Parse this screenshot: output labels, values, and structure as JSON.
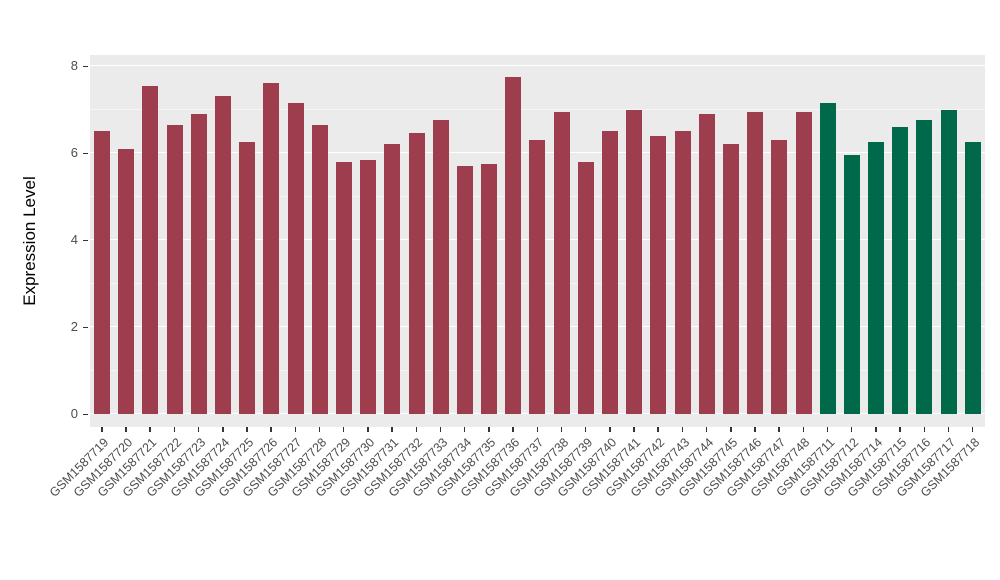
{
  "figure": {
    "background": "#FFFFFF",
    "panel_background": "#EBEBEB",
    "gridline_color": "#FFFFFF",
    "axis_text_color": "#4D4D4D",
    "axis_title_color": "#000000"
  },
  "chart_data": {
    "type": "bar",
    "title": "",
    "xlabel": "",
    "ylabel": "Expression Level",
    "ylim": [
      0,
      8
    ],
    "yticks": [
      0,
      2,
      4,
      6,
      8
    ],
    "ytick_labels": [
      "0",
      "2",
      "4",
      "6",
      "8"
    ],
    "grid": true,
    "legend": "none",
    "categories": [
      "GSM1587719",
      "GSM1587720",
      "GSM1587721",
      "GSM1587722",
      "GSM1587723",
      "GSM1587724",
      "GSM1587725",
      "GSM1587726",
      "GSM1587727",
      "GSM1587728",
      "GSM1587729",
      "GSM1587730",
      "GSM1587731",
      "GSM1587732",
      "GSM1587733",
      "GSM1587734",
      "GSM1587735",
      "GSM1587736",
      "GSM1587737",
      "GSM1587738",
      "GSM1587739",
      "GSM1587740",
      "GSM1587741",
      "GSM1587742",
      "GSM1587743",
      "GSM1587744",
      "GSM1587745",
      "GSM1587746",
      "GSM1587747",
      "GSM1587748",
      "GSM1587711",
      "GSM1587712",
      "GSM1587714",
      "GSM1587715",
      "GSM1587716",
      "GSM1587717",
      "GSM1587718"
    ],
    "values": [
      6.5,
      6.1,
      7.55,
      6.65,
      6.9,
      7.3,
      6.25,
      7.6,
      7.15,
      6.65,
      5.8,
      5.85,
      6.2,
      6.45,
      6.75,
      5.7,
      5.75,
      7.75,
      6.3,
      6.95,
      5.8,
      6.5,
      7.0,
      6.4,
      6.5,
      6.9,
      6.2,
      6.95,
      6.3,
      6.95,
      7.15,
      5.95,
      6.25,
      6.6,
      6.75,
      7.0,
      6.25
    ],
    "groups": [
      "red_group",
      "red_group",
      "red_group",
      "red_group",
      "red_group",
      "red_group",
      "red_group",
      "red_group",
      "red_group",
      "red_group",
      "red_group",
      "red_group",
      "red_group",
      "red_group",
      "red_group",
      "red_group",
      "red_group",
      "red_group",
      "red_group",
      "red_group",
      "red_group",
      "red_group",
      "red_group",
      "red_group",
      "red_group",
      "red_group",
      "red_group",
      "red_group",
      "red_group",
      "red_group",
      "green_group",
      "green_group",
      "green_group",
      "green_group",
      "green_group",
      "green_group",
      "green_group"
    ],
    "group_colors": {
      "red_group": "#9E3D4E",
      "green_group": "#00694A"
    }
  }
}
